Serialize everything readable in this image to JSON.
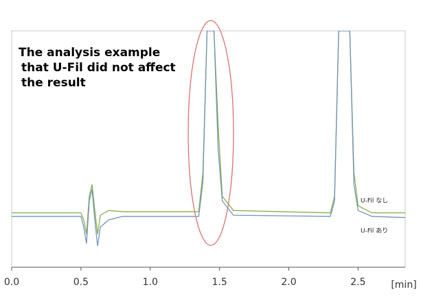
{
  "chart_data": {
    "type": "line",
    "annotation": [
      "The analysis example",
      "that U-Fil did not affect",
      "the result"
    ],
    "x_label": "[min]",
    "x": [
      0,
      0.5,
      0.52,
      0.54,
      0.56,
      0.58,
      0.6,
      0.62,
      0.64,
      0.7,
      0.8,
      1.35,
      1.38,
      1.41,
      1.43,
      1.46,
      1.49,
      1.52,
      1.6,
      2.3,
      2.33,
      2.36,
      2.4,
      2.44,
      2.47,
      2.5,
      2.6,
      2.84
    ],
    "series": [
      {
        "name": "U-Fil なし",
        "color": "#86ad4a",
        "values": [
          23,
          23,
          20,
          14,
          30,
          35,
          24,
          14,
          22,
          24,
          23.5,
          23.5,
          40,
          100,
          100,
          100,
          60,
          30,
          24,
          23,
          30,
          100,
          100,
          100,
          40,
          26,
          23,
          23
        ]
      },
      {
        "name": "U-Fil あり",
        "color": "#7394bb",
        "values": [
          21.5,
          21.5,
          17,
          10,
          28,
          33,
          20,
          9,
          17,
          20,
          21.5,
          21.5,
          36,
          100,
          100,
          100,
          50,
          28,
          22,
          21.5,
          28,
          100,
          100,
          100,
          35,
          24,
          21.5,
          21
        ]
      }
    ],
    "xlim": [
      0,
      2.84
    ],
    "ylim": [
      0,
      100
    ],
    "xticks": [
      {
        "value": 0,
        "label": "0.0"
      },
      {
        "value": 0.5,
        "label": "0.5"
      },
      {
        "value": 1,
        "label": "1.0"
      },
      {
        "value": 1.5,
        "label": "1.5"
      },
      {
        "value": 2,
        "label": "2.0"
      },
      {
        "value": 2.5,
        "label": "2.5"
      }
    ],
    "grid": false
  }
}
